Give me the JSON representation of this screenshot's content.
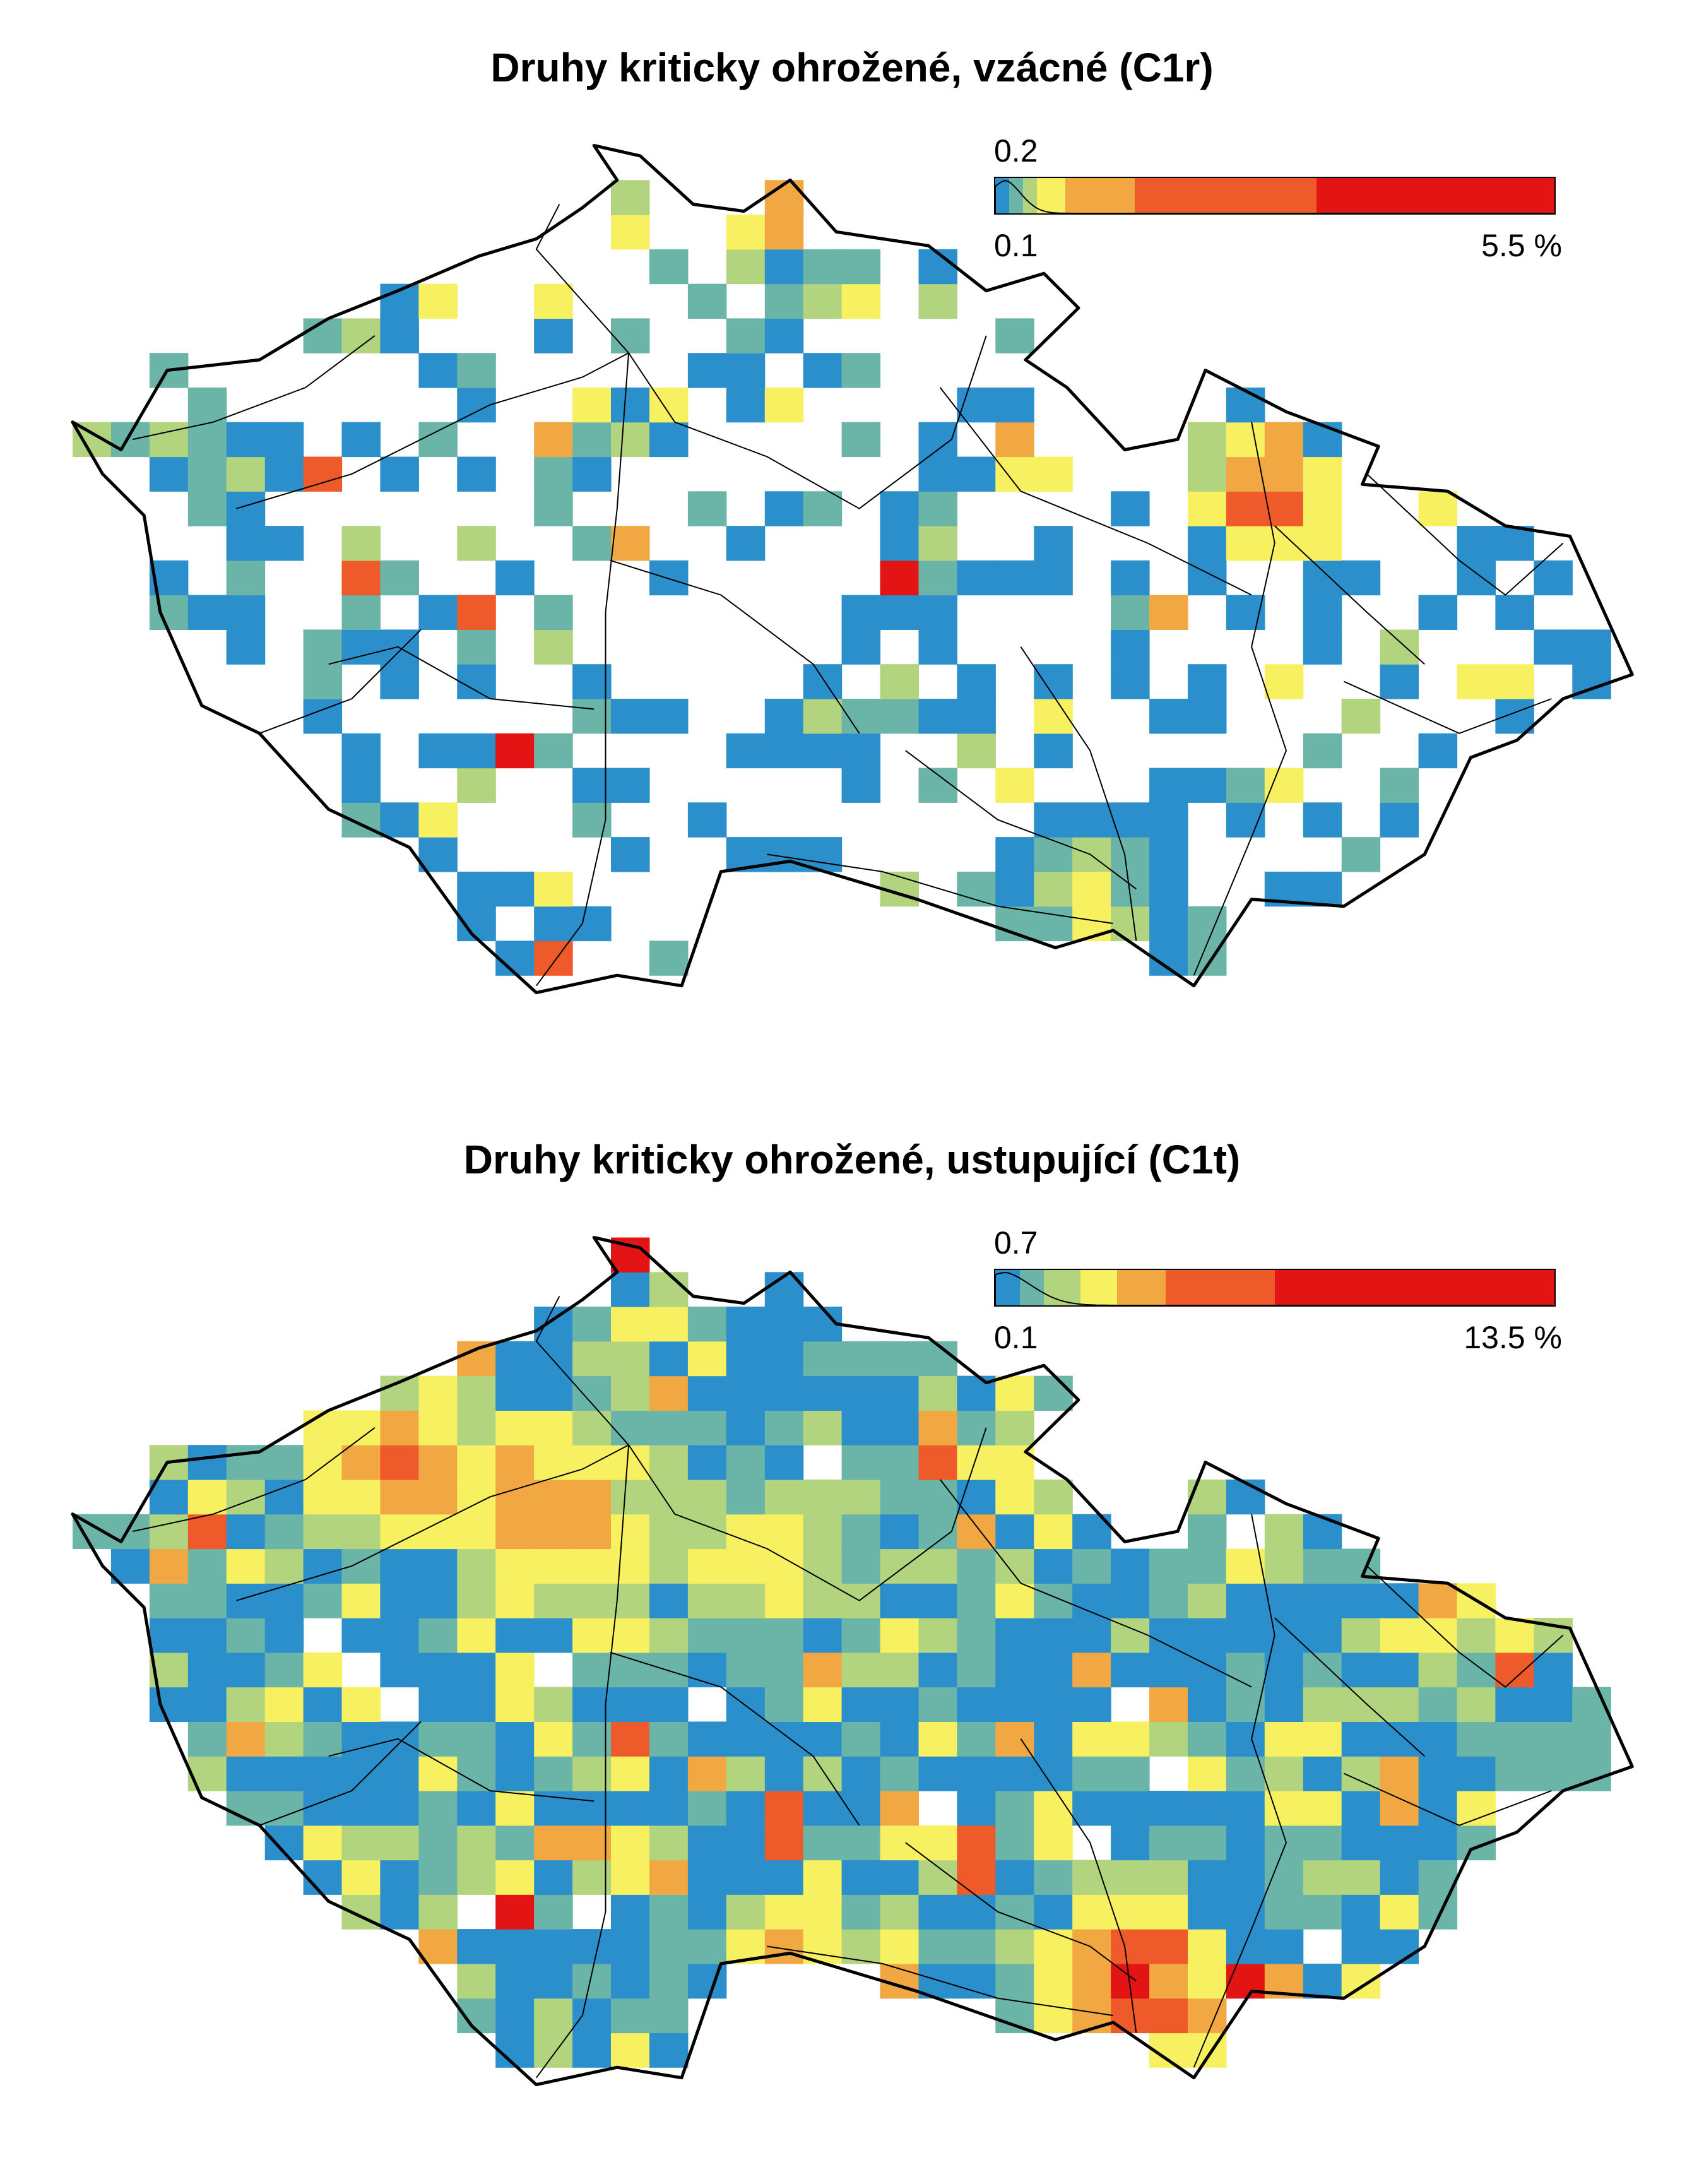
{
  "colors": {
    "blue": "#2b8fcb",
    "teal": "#6bb5a8",
    "light_green": "#b3d47f",
    "yellow": "#f7f161",
    "orange": "#f1a842",
    "red_orange": "#ef5a2a",
    "red": "#e31414",
    "background": "#ffffff",
    "border": "#000000"
  },
  "panels": [
    {
      "title": "Druhy kriticky ohrožené, vzácné (C1r)",
      "legend": {
        "peak_label": "0.2",
        "min_label": "0.1",
        "max_label": "5.5 %",
        "segments": [
          {
            "color": "#2b8fcb",
            "weight": 1
          },
          {
            "color": "#6bb5a8",
            "weight": 1
          },
          {
            "color": "#b3d47f",
            "weight": 1
          },
          {
            "color": "#f7f161",
            "weight": 2
          },
          {
            "color": "#f1a842",
            "weight": 5
          },
          {
            "color": "#ef5a2a",
            "weight": 13
          },
          {
            "color": "#e31414",
            "weight": 17
          }
        ]
      },
      "density": 0.38,
      "weights": [
        0.55,
        0.25,
        0.1,
        0.06,
        0.025,
        0.01,
        0.005
      ],
      "hotspots": [
        {
          "lon": 15.1,
          "lat": 50.9,
          "level": 6,
          "radius": 0.15
        },
        {
          "lon": 17.25,
          "lat": 50.05,
          "level": 6,
          "radius": 0.18
        },
        {
          "lon": 16.5,
          "lat": 48.85,
          "level": 3,
          "radius": 0.3
        },
        {
          "lon": 13.35,
          "lat": 49.0,
          "level": 3,
          "radius": 0.15
        }
      ],
      "seed": 17
    },
    {
      "title": "Druhy kriticky ohrožené, ustupující (C1t)",
      "legend": {
        "peak_label": "0.7",
        "min_label": "0.1",
        "max_label": "13.5 %",
        "segments": [
          {
            "color": "#2b8fcb",
            "weight": 2
          },
          {
            "color": "#6bb5a8",
            "weight": 2
          },
          {
            "color": "#b3d47f",
            "weight": 3
          },
          {
            "color": "#f7f161",
            "weight": 3
          },
          {
            "color": "#f1a842",
            "weight": 4
          },
          {
            "color": "#ef5a2a",
            "weight": 9
          },
          {
            "color": "#e31414",
            "weight": 23
          }
        ]
      },
      "density": 0.95,
      "weights": [
        0.42,
        0.25,
        0.15,
        0.1,
        0.05,
        0.025,
        0.005
      ],
      "hotspots": [
        {
          "lon": 16.7,
          "lat": 48.85,
          "level": 6,
          "radius": 0.28
        },
        {
          "lon": 14.2,
          "lat": 50.25,
          "level": 5,
          "radius": 0.35
        },
        {
          "lon": 13.5,
          "lat": 50.4,
          "level": 5,
          "radius": 0.3
        },
        {
          "lon": 15.2,
          "lat": 49.0,
          "level": 5,
          "radius": 0.2
        },
        {
          "lon": 15.1,
          "lat": 50.1,
          "level": 4,
          "radius": 0.3
        }
      ],
      "seed": 91
    }
  ],
  "map": {
    "border": [
      [
        12.09,
        50.25
      ],
      [
        12.3,
        50.17
      ],
      [
        12.5,
        50.4
      ],
      [
        12.9,
        50.43
      ],
      [
        13.2,
        50.55
      ],
      [
        13.5,
        50.63
      ],
      [
        13.85,
        50.73
      ],
      [
        14.1,
        50.78
      ],
      [
        14.3,
        50.87
      ],
      [
        14.45,
        50.95
      ],
      [
        14.35,
        51.05
      ],
      [
        14.55,
        51.02
      ],
      [
        14.78,
        50.88
      ],
      [
        15.0,
        50.86
      ],
      [
        15.2,
        50.95
      ],
      [
        15.4,
        50.8
      ],
      [
        15.8,
        50.76
      ],
      [
        16.05,
        50.63
      ],
      [
        16.3,
        50.68
      ],
      [
        16.45,
        50.58
      ],
      [
        16.22,
        50.43
      ],
      [
        16.4,
        50.35
      ],
      [
        16.65,
        50.17
      ],
      [
        16.88,
        50.2
      ],
      [
        17.0,
        50.4
      ],
      [
        17.35,
        50.28
      ],
      [
        17.75,
        50.18
      ],
      [
        17.68,
        50.07
      ],
      [
        18.05,
        50.05
      ],
      [
        18.3,
        49.95
      ],
      [
        18.58,
        49.92
      ],
      [
        18.85,
        49.52
      ],
      [
        18.55,
        49.45
      ],
      [
        18.35,
        49.33
      ],
      [
        18.15,
        49.28
      ],
      [
        17.95,
        49.0
      ],
      [
        17.6,
        48.85
      ],
      [
        17.2,
        48.87
      ],
      [
        16.95,
        48.62
      ],
      [
        16.6,
        48.78
      ],
      [
        16.35,
        48.73
      ],
      [
        15.75,
        48.87
      ],
      [
        15.2,
        48.98
      ],
      [
        14.9,
        48.95
      ],
      [
        14.73,
        48.62
      ],
      [
        14.45,
        48.65
      ],
      [
        14.1,
        48.6
      ],
      [
        13.82,
        48.77
      ],
      [
        13.55,
        49.02
      ],
      [
        13.2,
        49.13
      ],
      [
        12.9,
        49.35
      ],
      [
        12.65,
        49.43
      ],
      [
        12.47,
        49.7
      ],
      [
        12.4,
        49.98
      ],
      [
        12.22,
        50.1
      ],
      [
        12.09,
        50.25
      ]
    ],
    "rivers": [
      [
        [
          12.8,
          50.0
        ],
        [
          13.3,
          50.1
        ],
        [
          13.9,
          50.3
        ],
        [
          14.3,
          50.38
        ],
        [
          14.5,
          50.45
        ]
      ],
      [
        [
          14.5,
          50.45
        ],
        [
          14.3,
          50.6
        ],
        [
          14.1,
          50.75
        ],
        [
          14.2,
          50.88
        ]
      ],
      [
        [
          14.5,
          50.45
        ],
        [
          14.7,
          50.25
        ],
        [
          15.1,
          50.15
        ],
        [
          15.5,
          50.0
        ],
        [
          15.9,
          50.2
        ],
        [
          16.05,
          50.5
        ]
      ],
      [
        [
          14.5,
          50.45
        ],
        [
          14.45,
          50.0
        ],
        [
          14.4,
          49.7
        ],
        [
          14.4,
          49.45
        ],
        [
          14.4,
          49.1
        ],
        [
          14.3,
          48.8
        ],
        [
          14.1,
          48.62
        ]
      ],
      [
        [
          13.2,
          49.55
        ],
        [
          13.5,
          49.6
        ],
        [
          13.9,
          49.45
        ],
        [
          14.35,
          49.42
        ]
      ],
      [
        [
          14.42,
          49.85
        ],
        [
          14.9,
          49.75
        ],
        [
          15.3,
          49.55
        ],
        [
          15.5,
          49.35
        ]
      ],
      [
        [
          17.2,
          50.25
        ],
        [
          17.3,
          49.9
        ],
        [
          17.2,
          49.6
        ],
        [
          17.35,
          49.3
        ],
        [
          17.2,
          49.05
        ],
        [
          16.95,
          48.65
        ]
      ],
      [
        [
          16.2,
          49.6
        ],
        [
          16.5,
          49.3
        ],
        [
          16.65,
          49.0
        ],
        [
          16.7,
          48.75
        ]
      ],
      [
        [
          15.7,
          49.3
        ],
        [
          16.1,
          49.1
        ],
        [
          16.5,
          49.0
        ],
        [
          16.7,
          48.9
        ]
      ],
      [
        [
          15.1,
          49.0
        ],
        [
          15.6,
          48.95
        ],
        [
          16.1,
          48.85
        ],
        [
          16.6,
          48.8
        ]
      ],
      [
        [
          17.7,
          50.1
        ],
        [
          18.1,
          49.85
        ],
        [
          18.3,
          49.75
        ],
        [
          18.55,
          49.9
        ]
      ],
      [
        [
          17.3,
          49.95
        ],
        [
          17.7,
          49.7
        ],
        [
          17.95,
          49.55
        ]
      ],
      [
        [
          17.6,
          49.5
        ],
        [
          18.1,
          49.35
        ],
        [
          18.5,
          49.45
        ]
      ],
      [
        [
          15.85,
          50.35
        ],
        [
          16.2,
          50.05
        ],
        [
          16.75,
          49.9
        ],
        [
          17.2,
          49.75
        ]
      ],
      [
        [
          12.35,
          50.2
        ],
        [
          12.7,
          50.25
        ],
        [
          13.1,
          50.35
        ],
        [
          13.4,
          50.5
        ]
      ],
      [
        [
          12.9,
          49.35
        ],
        [
          13.3,
          49.45
        ],
        [
          13.6,
          49.65
        ]
      ]
    ]
  }
}
